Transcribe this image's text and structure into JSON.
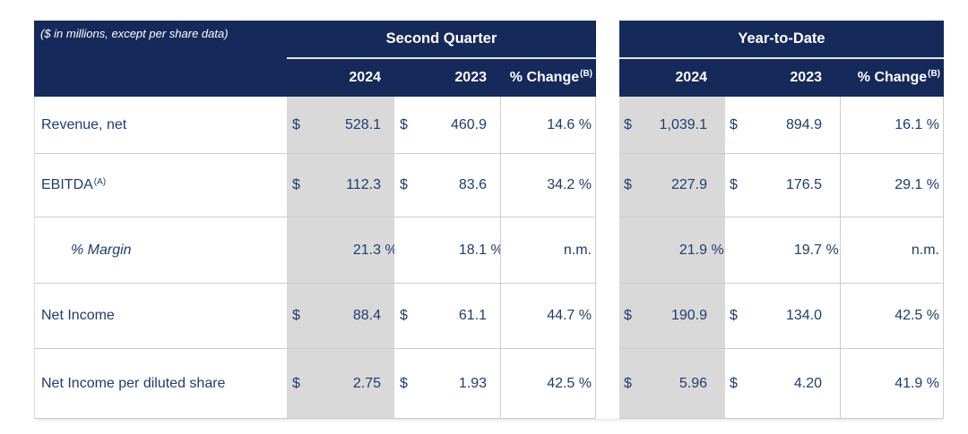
{
  "note": "($ in millions, except per share data)",
  "header": {
    "second_quarter": "Second Quarter",
    "year_to_date": "Year-to-Date",
    "col_2024": "2024",
    "col_2023": "2023",
    "pct_change": "% Change",
    "pct_change_sup": "(B)"
  },
  "colors": {
    "header_navy": "#15295A",
    "body_text_blue": "#1F3C70",
    "shaded_column_gray": "#D9D9D9",
    "grid_line_gray": "#CDCDCD"
  },
  "rows": [
    {
      "label": "Revenue, net",
      "label_sup": "",
      "q2_2024_cur": "$",
      "q2_2024": "528.1",
      "q2_2024_suf": "",
      "q2_2023_cur": "$",
      "q2_2023": "460.9",
      "q2_2023_suf": "",
      "q2_change": "14.6 %",
      "ytd_2024_cur": "$",
      "ytd_2024": "1,039.1",
      "ytd_2024_suf": "",
      "ytd_2023_cur": "$",
      "ytd_2023": "894.9",
      "ytd_2023_suf": "",
      "ytd_change": "16.1 %"
    },
    {
      "label": "EBITDA",
      "label_sup": "(A)",
      "q2_2024_cur": "$",
      "q2_2024": "112.3",
      "q2_2024_suf": "",
      "q2_2023_cur": "$",
      "q2_2023": "83.6",
      "q2_2023_suf": "",
      "q2_change": "34.2 %",
      "ytd_2024_cur": "$",
      "ytd_2024": "227.9",
      "ytd_2024_suf": "",
      "ytd_2023_cur": "$",
      "ytd_2023": "176.5",
      "ytd_2023_suf": "",
      "ytd_change": "29.1 %"
    },
    {
      "label": "% Margin",
      "label_sup": "",
      "q2_2024_cur": "",
      "q2_2024": "21.3",
      "q2_2024_suf": " %",
      "q2_2023_cur": "",
      "q2_2023": "18.1",
      "q2_2023_suf": " %",
      "q2_change": "n.m.",
      "ytd_2024_cur": "",
      "ytd_2024": "21.9",
      "ytd_2024_suf": " %",
      "ytd_2023_cur": "",
      "ytd_2023": "19.7",
      "ytd_2023_suf": " %",
      "ytd_change": "n.m."
    },
    {
      "label": "Net Income",
      "label_sup": "",
      "q2_2024_cur": "$",
      "q2_2024": "88.4",
      "q2_2024_suf": "",
      "q2_2023_cur": "$",
      "q2_2023": "61.1",
      "q2_2023_suf": "",
      "q2_change": "44.7 %",
      "ytd_2024_cur": "$",
      "ytd_2024": "190.9",
      "ytd_2024_suf": "",
      "ytd_2023_cur": "$",
      "ytd_2023": "134.0",
      "ytd_2023_suf": "",
      "ytd_change": "42.5 %"
    },
    {
      "label": "Net Income per diluted share",
      "label_sup": "",
      "q2_2024_cur": "$",
      "q2_2024": "2.75",
      "q2_2024_suf": "",
      "q2_2023_cur": "$",
      "q2_2023": "1.93",
      "q2_2023_suf": "",
      "q2_change": "42.5 %",
      "ytd_2024_cur": "$",
      "ytd_2024": "5.96",
      "ytd_2024_suf": "",
      "ytd_2023_cur": "$",
      "ytd_2023": "4.20",
      "ytd_2023_suf": "",
      "ytd_change": "41.9 %"
    }
  ]
}
